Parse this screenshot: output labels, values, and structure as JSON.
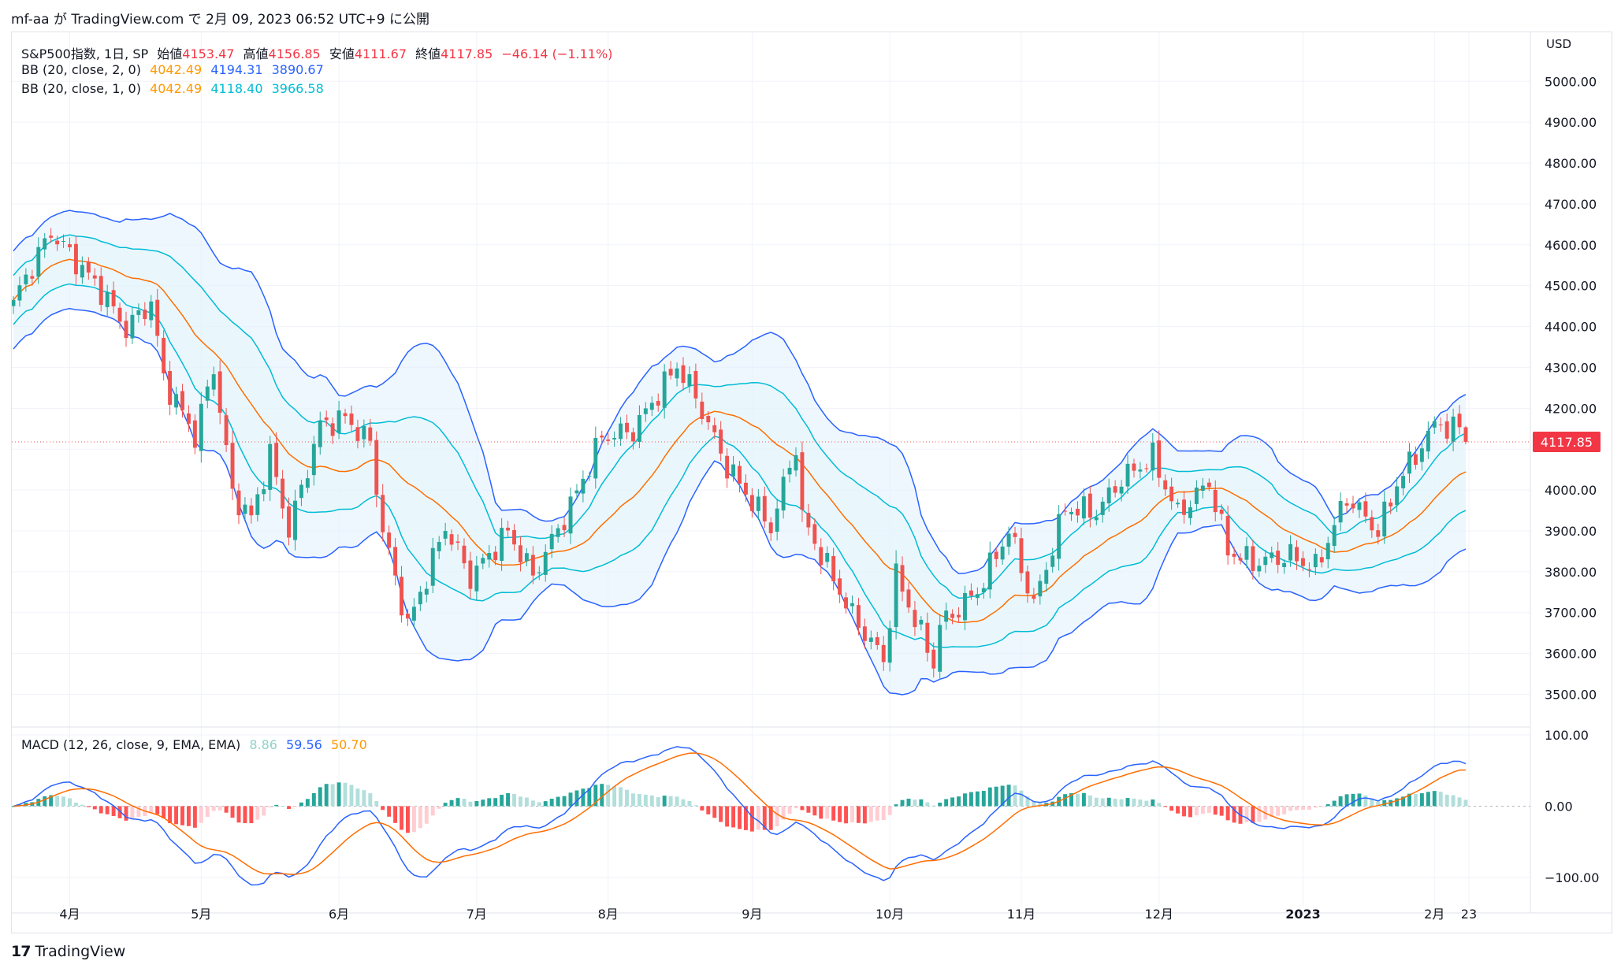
{
  "header": {
    "caption": "mf-aa が TradingView.com で 2月 09, 2023 06:52 UTC+9 に公開"
  },
  "legend": {
    "symbol": "S&P500指数, 1日, SP",
    "open_label": "始値",
    "open_value": "4153.47",
    "high_label": "高値",
    "high_value": "4156.85",
    "low_label": "安値",
    "low_value": "4111.67",
    "close_label": "終値",
    "close_value": "4117.85",
    "change": "−46.14 (−1.11%)",
    "bb2_label": "BB (20, close, 2, 0)",
    "bb2_basis": "4042.49",
    "bb2_upper": "4194.31",
    "bb2_lower": "3890.67",
    "bb1_label": "BB (20, close, 1, 0)",
    "bb1_basis": "4042.49",
    "bb1_upper": "4118.40",
    "bb1_lower": "3966.58",
    "macd_label": "MACD (12, 26, close, 9, EMA, EMA)",
    "macd_hist": "8.86",
    "macd_line": "59.56",
    "macd_signal": "50.70"
  },
  "price_axis": {
    "currency": "USD",
    "last_price": "4117.85"
  },
  "footer": {
    "brand": "TradingView",
    "logo_glyph": "17"
  },
  "colors": {
    "up": "#26a69a",
    "down": "#ef5350",
    "basis": "#ff6d00",
    "band2": "#2962ff",
    "band1": "#00bcd4",
    "band_fill": "#e3f2fd",
    "macd": "#2962ff",
    "signal": "#ff6d00",
    "hist_up_strong": "#26a69a",
    "hist_up_weak": "#b2dfdb",
    "hist_down_strong": "#ff5252",
    "hist_down_weak": "#ffcdd2"
  },
  "chart_data": [
    {
      "type": "candlestick",
      "title": "S&P500指数, 1日, SP",
      "ylabel": "USD",
      "ylim": [
        3420,
        5120
      ],
      "y_ticks": [
        "3500.00",
        "3600.00",
        "3700.00",
        "3800.00",
        "3900.00",
        "4000.00",
        "4100.00",
        "4200.00",
        "4300.00",
        "4400.00",
        "4500.00",
        "4600.00",
        "4700.00",
        "4800.00",
        "4900.00",
        "5000.00"
      ],
      "x_ticks": [
        {
          "label": "4月",
          "date": "2022-04-01"
        },
        {
          "label": "5月",
          "date": "2022-05-02"
        },
        {
          "label": "6月",
          "date": "2022-06-01"
        },
        {
          "label": "7月",
          "date": "2022-07-01"
        },
        {
          "label": "8月",
          "date": "2022-08-01"
        },
        {
          "label": "9月",
          "date": "2022-09-01"
        },
        {
          "label": "10月",
          "date": "2022-10-03"
        },
        {
          "label": "11月",
          "date": "2022-11-01"
        },
        {
          "label": "12月",
          "date": "2022-12-01"
        },
        {
          "label": "2023",
          "date": "2023-01-03"
        },
        {
          "label": "2月",
          "date": "2023-02-01"
        },
        {
          "label": "23",
          "date": "2023-03-01"
        }
      ],
      "close_anchors": [
        [
          "2022-03-21",
          4465
        ],
        [
          "2022-03-29",
          4631
        ],
        [
          "2022-04-08",
          4488
        ],
        [
          "2022-04-14",
          4393
        ],
        [
          "2022-04-20",
          4460
        ],
        [
          "2022-04-22",
          4272
        ],
        [
          "2022-04-29",
          4132
        ],
        [
          "2022-05-04",
          4300
        ],
        [
          "2022-05-09",
          3991
        ],
        [
          "2022-05-12",
          3930
        ],
        [
          "2022-05-17",
          4088
        ],
        [
          "2022-05-20",
          3901
        ],
        [
          "2022-05-27",
          4158
        ],
        [
          "2022-06-02",
          4176
        ],
        [
          "2022-06-08",
          4115
        ],
        [
          "2022-06-10",
          3900
        ],
        [
          "2022-06-16",
          3667
        ],
        [
          "2022-06-24",
          3911
        ],
        [
          "2022-06-30",
          3785
        ],
        [
          "2022-07-08",
          3899
        ],
        [
          "2022-07-14",
          3790
        ],
        [
          "2022-07-22",
          3961
        ],
        [
          "2022-07-29",
          4130
        ],
        [
          "2022-08-05",
          4145
        ],
        [
          "2022-08-16",
          4305
        ],
        [
          "2022-08-19",
          4228
        ],
        [
          "2022-08-26",
          4057
        ],
        [
          "2022-09-06",
          3908
        ],
        [
          "2022-09-12",
          4110
        ],
        [
          "2022-09-13",
          3932
        ],
        [
          "2022-09-23",
          3693
        ],
        [
          "2022-09-30",
          3585
        ],
        [
          "2022-10-04",
          3790
        ],
        [
          "2022-10-12",
          3577
        ],
        [
          "2022-10-13",
          3669
        ],
        [
          "2022-10-21",
          3752
        ],
        [
          "2022-10-28",
          3901
        ],
        [
          "2022-11-03",
          3719
        ],
        [
          "2022-11-10",
          3956
        ],
        [
          "2022-11-17",
          3946
        ],
        [
          "2022-11-23",
          4027
        ],
        [
          "2022-11-30",
          4080
        ],
        [
          "2022-12-06",
          3941
        ],
        [
          "2022-12-13",
          4019
        ],
        [
          "2022-12-16",
          3852
        ],
        [
          "2022-12-22",
          3822
        ],
        [
          "2022-12-30",
          3839
        ],
        [
          "2023-01-05",
          3808
        ],
        [
          "2023-01-12",
          3983
        ],
        [
          "2023-01-19",
          3898
        ],
        [
          "2023-01-24",
          4016
        ],
        [
          "2023-02-02",
          4179
        ],
        [
          "2023-02-03",
          4136
        ],
        [
          "2023-02-07",
          4164
        ],
        [
          "2023-02-08",
          4117.85
        ]
      ],
      "last_bar": {
        "date": "2023-02-08",
        "open": 4153.47,
        "high": 4156.85,
        "low": 4111.67,
        "close": 4117.85
      },
      "indicators": {
        "bb_2sd": {
          "basis": 4042.49,
          "upper": 4194.31,
          "lower": 3890.67
        },
        "bb_1sd": {
          "basis": 4042.49,
          "upper": 4118.4,
          "lower": 3966.58
        }
      }
    },
    {
      "type": "line",
      "title": "MACD (12, 26, close, 9, EMA, EMA)",
      "ylim": [
        -130,
        110
      ],
      "y_ticks": [
        "100.00",
        "0.00",
        "−100.00"
      ],
      "series": [
        {
          "name": "MACD",
          "last": 59.56
        },
        {
          "name": "Signal",
          "last": 50.7
        },
        {
          "name": "Histogram",
          "last": 8.86
        }
      ]
    }
  ]
}
